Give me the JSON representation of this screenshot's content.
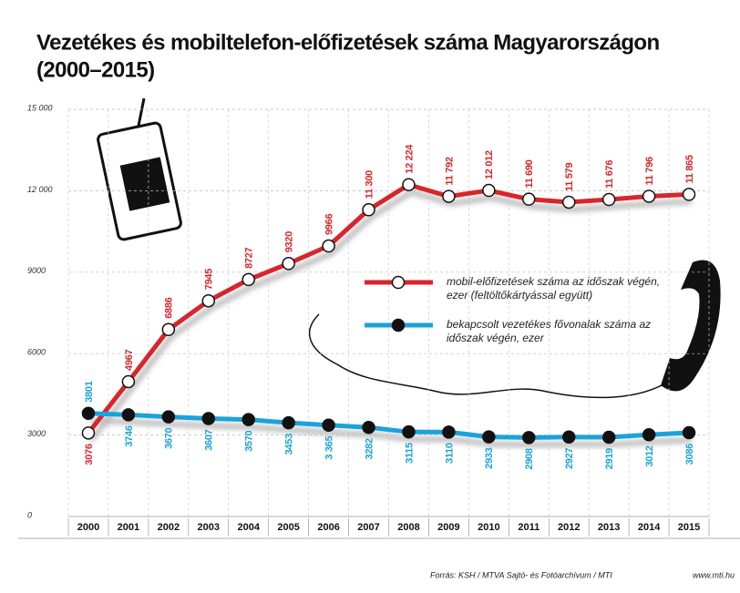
{
  "chart_data": {
    "type": "line",
    "title": "Vezetékes és mobiltelefon-előfizetések száma Magyarországon",
    "subtitle": "(2000–2015)",
    "categories": [
      "2000",
      "2001",
      "2002",
      "2003",
      "2004",
      "2005",
      "2006",
      "2007",
      "2008",
      "2009",
      "2010",
      "2011",
      "2012",
      "2013",
      "2014",
      "2015"
    ],
    "series": [
      {
        "name": "mobil-előfizetések száma az időszak végén, ezer (feltöltőkártyással együtt)",
        "color": "#d7262b",
        "values": [
          3076,
          4967,
          6886,
          7945,
          8727,
          9320,
          9966,
          11300,
          12224,
          11792,
          12012,
          11690,
          11579,
          11676,
          11796,
          11865
        ],
        "value_labels": [
          "3076",
          "4967",
          "6886",
          "7945",
          "8727",
          "9320",
          "9966",
          "11 300",
          "12 224",
          "11 792",
          "12 012",
          "11 690",
          "11 579",
          "11 676",
          "11 796",
          "11 865"
        ]
      },
      {
        "name": "bekapcsolt vezetékes fővonalak száma az időszak végén, ezer",
        "color": "#1aa3d9",
        "values": [
          3801,
          3746,
          3670,
          3607,
          3570,
          3453,
          3365,
          3282,
          3115,
          3110,
          2933,
          2908,
          2927,
          2919,
          3012,
          3086
        ],
        "value_labels": [
          "3801",
          "3746",
          "3670",
          "3607",
          "3570",
          "3453",
          "3 365",
          "3282",
          "3115",
          "3110",
          "2933",
          "2908",
          "2927",
          "2919",
          "3012",
          "3086"
        ]
      }
    ],
    "ylim": [
      0,
      15000
    ],
    "yticks": [
      0,
      3000,
      6000,
      9000,
      {
        "value": 12000,
        "label": "12 000"
      },
      {
        "value": 15000,
        "label": "15 000"
      }
    ],
    "grid": true,
    "source": "Forrás: KSH / MTVA Sajtó- és Fotóarchívum / MTI",
    "website": "www.mti.hu"
  }
}
